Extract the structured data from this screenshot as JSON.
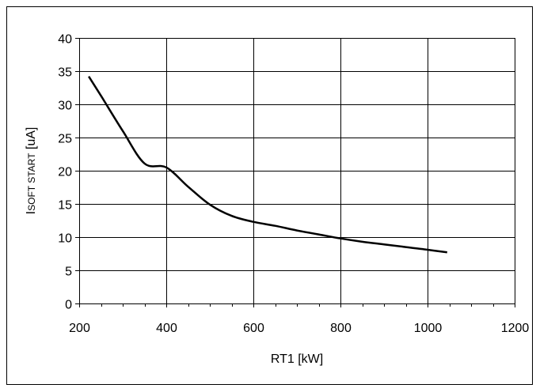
{
  "chart_data": {
    "type": "line",
    "title": "",
    "xlabel": "RT1 [kW]",
    "ylabel_main": "I",
    "ylabel_sub": "SOFT START",
    "ylabel_unit": " [uA]",
    "xlim": [
      200,
      1200
    ],
    "ylim": [
      0,
      40
    ],
    "x_ticks": [
      200,
      400,
      600,
      800,
      1000,
      1200
    ],
    "x_tick_labels": [
      "200",
      "400",
      "600",
      "800",
      "1000",
      "1200"
    ],
    "y_ticks": [
      0,
      5,
      10,
      15,
      20,
      25,
      30,
      35,
      40
    ],
    "y_tick_labels": [
      "0",
      "5",
      "10",
      "15",
      "20",
      "25",
      "30",
      "35",
      "40"
    ],
    "x_minor_step": 50,
    "grid": true,
    "series": [
      {
        "color": "#000000",
        "x": [
          222,
          250,
          300,
          350,
          400,
          450,
          500,
          550,
          600,
          650,
          700,
          750,
          800,
          850,
          900,
          950,
          1000,
          1045
        ],
        "y": [
          34.2,
          31.3,
          26.0,
          21.1,
          20.5,
          17.6,
          14.9,
          13.2,
          12.3,
          11.7,
          11.0,
          10.4,
          9.8,
          9.3,
          8.9,
          8.5,
          8.1,
          7.7
        ]
      }
    ]
  }
}
